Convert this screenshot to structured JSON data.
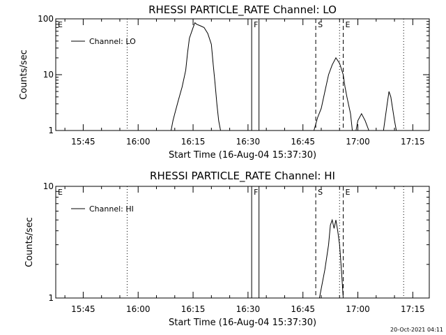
{
  "chart_data": [
    {
      "type": "line",
      "title": "RHESSI PARTICLE_RATE Channel: LO",
      "xlabel": "Start Time (16-Aug-04 15:37:30)",
      "ylabel": "Counts/sec",
      "y_scale": "log",
      "ylim": [
        1,
        100
      ],
      "xlim": [
        "15:37:30",
        "17:19:30"
      ],
      "y_ticks": [
        "1",
        "10",
        "100"
      ],
      "x_ticks": [
        "15:45",
        "16:00",
        "16:15",
        "16:30",
        "16:45",
        "17:00",
        "17:15"
      ],
      "legend": {
        "placement": "top-left",
        "entries": [
          "Channel: LO"
        ]
      },
      "markers": [
        {
          "label": "E",
          "time": "15:37:30",
          "style": "dotted"
        },
        {
          "label": "",
          "time": "15:57:00",
          "style": "dotted"
        },
        {
          "label": "F",
          "time": "16:31:00",
          "style": "solid"
        },
        {
          "label": "",
          "time": "16:33:00",
          "style": "solid"
        },
        {
          "label": "S",
          "time": "16:48:30",
          "style": "dashed"
        },
        {
          "label": "",
          "time": "16:55:00",
          "style": "dotted"
        },
        {
          "label": "E",
          "time": "16:56:00",
          "style": "dashed"
        },
        {
          "label": "",
          "time": "17:12:30",
          "style": "dotted"
        }
      ],
      "series": [
        {
          "name": "Channel: LO",
          "segments": [
            [
              [
                "16:09",
                "1"
              ],
              [
                "16:09.5",
                "1.5"
              ],
              [
                "16:10",
                "2"
              ],
              [
                "16:11",
                "3.5"
              ],
              [
                "16:12",
                "6"
              ],
              [
                "16:13",
                "12"
              ],
              [
                "16:13.5",
                "25"
              ],
              [
                "16:14",
                "45"
              ],
              [
                "16:15",
                "70"
              ],
              [
                "16:15.5",
                "85"
              ],
              [
                "16:16",
                "80"
              ],
              [
                "16:17",
                "75"
              ],
              [
                "16:18",
                "70"
              ],
              [
                "16:19",
                "55"
              ],
              [
                "16:20",
                "35"
              ],
              [
                "16:20.5",
                "15"
              ],
              [
                "16:21",
                "7"
              ],
              [
                "16:21.5",
                "3"
              ],
              [
                "16:22",
                "1.5"
              ],
              [
                "16:22.5",
                "1"
              ]
            ],
            [
              [
                "16:48",
                "1"
              ],
              [
                "16:48.5",
                "1.3"
              ],
              [
                "16:49",
                "1.7"
              ],
              [
                "16:50",
                "2.5"
              ],
              [
                "16:51",
                "5"
              ],
              [
                "16:52",
                "10"
              ],
              [
                "16:53",
                "15"
              ],
              [
                "16:54",
                "20"
              ],
              [
                "16:55",
                "16"
              ],
              [
                "16:56",
                "10"
              ],
              [
                "16:56.5",
                "6"
              ],
              [
                "16:57",
                "4"
              ],
              [
                "16:58",
                "2"
              ],
              [
                "16:58.5",
                "1"
              ],
              [
                "16:59.5",
                "1"
              ],
              [
                "17:00",
                "1.5"
              ],
              [
                "17:01",
                "2"
              ],
              [
                "17:02",
                "1.5"
              ],
              [
                "17:03",
                "1"
              ],
              [
                "17:07",
                "1"
              ],
              [
                "17:08",
                "3"
              ],
              [
                "17:08.5",
                "5"
              ],
              [
                "17:09",
                "4"
              ],
              [
                "17:10",
                "1.5"
              ],
              [
                "17:10.5",
                "1"
              ]
            ]
          ]
        }
      ]
    },
    {
      "type": "line",
      "title": "RHESSI PARTICLE_RATE Channel: HI",
      "xlabel": "Start Time (16-Aug-04 15:37:30)",
      "ylabel": "Counts/sec",
      "y_scale": "log",
      "ylim": [
        1,
        10
      ],
      "xlim": [
        "15:37:30",
        "17:19:30"
      ],
      "y_ticks": [
        "1",
        "10"
      ],
      "x_ticks": [
        "15:45",
        "16:00",
        "16:15",
        "16:30",
        "16:45",
        "17:00",
        "17:15"
      ],
      "legend": {
        "placement": "top-left",
        "entries": [
          "Channel: HI"
        ]
      },
      "markers": [
        {
          "label": "E",
          "time": "15:37:30",
          "style": "dotted"
        },
        {
          "label": "",
          "time": "15:57:00",
          "style": "dotted"
        },
        {
          "label": "F",
          "time": "16:31:00",
          "style": "solid"
        },
        {
          "label": "",
          "time": "16:33:00",
          "style": "solid"
        },
        {
          "label": "S",
          "time": "16:48:30",
          "style": "dashed"
        },
        {
          "label": "",
          "time": "16:55:00",
          "style": "dotted"
        },
        {
          "label": "E",
          "time": "16:56:00",
          "style": "dashed"
        },
        {
          "label": "",
          "time": "17:12:30",
          "style": "dotted"
        }
      ],
      "series": [
        {
          "name": "Channel: HI",
          "segments": [
            [
              [
                "16:49.5",
                "1"
              ],
              [
                "16:51",
                "1.8"
              ],
              [
                "16:52",
                "3"
              ],
              [
                "16:52.5",
                "4.5"
              ],
              [
                "16:53",
                "5"
              ],
              [
                "16:53.5",
                "4.2"
              ],
              [
                "16:54",
                "5"
              ],
              [
                "16:54.5",
                "4"
              ],
              [
                "16:55",
                "3"
              ],
              [
                "16:55.5",
                "1.8"
              ],
              [
                "16:56",
                "1"
              ]
            ]
          ]
        }
      ]
    }
  ],
  "timestamp": "20-Oct-2021 04:11"
}
